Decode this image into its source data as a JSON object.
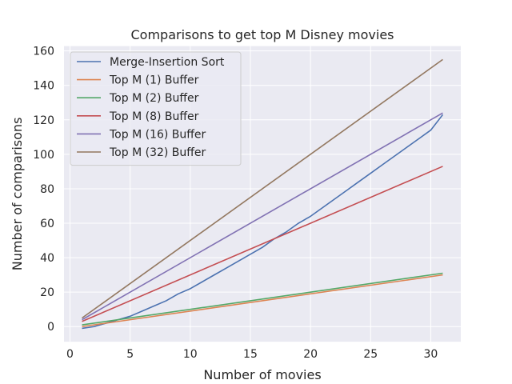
{
  "chart_data": {
    "type": "line",
    "title": "Comparisons to get top M Disney movies",
    "xlabel": "Number of movies",
    "ylabel": "Number of comparisons",
    "xlim": [
      -0.5,
      32.5
    ],
    "ylim": [
      -8.8,
      162.8
    ],
    "xticks": [
      0,
      5,
      10,
      15,
      20,
      25,
      30
    ],
    "yticks": [
      0,
      20,
      40,
      60,
      80,
      100,
      120,
      140,
      160
    ],
    "grid": true,
    "legend_position": "top-left",
    "series": [
      {
        "name": "Merge-Insertion Sort",
        "color": "#4c72b0",
        "x": [
          1,
          2,
          3,
          4,
          5,
          6,
          7,
          8,
          9,
          10,
          11,
          12,
          13,
          14,
          15,
          16,
          17,
          18,
          19,
          20,
          21,
          22,
          23,
          24,
          25,
          26,
          27,
          28,
          29,
          30,
          31
        ],
        "y": [
          -1,
          0,
          2,
          4,
          6,
          9,
          12,
          15,
          19,
          22,
          26,
          30,
          34,
          38,
          42,
          46,
          51,
          55,
          60,
          64,
          69,
          74,
          79,
          84,
          89,
          94,
          99,
          104,
          109,
          114,
          123
        ]
      },
      {
        "name": "Top M (1) Buffer",
        "color": "#dd8452",
        "x": [
          1,
          31
        ],
        "y": [
          0,
          30
        ]
      },
      {
        "name": "Top M (2) Buffer",
        "color": "#55a868",
        "x": [
          1,
          31
        ],
        "y": [
          1,
          31
        ]
      },
      {
        "name": "Top M (8) Buffer",
        "color": "#c44e52",
        "x": [
          1,
          31
        ],
        "y": [
          3,
          93
        ]
      },
      {
        "name": "Top M (16) Buffer",
        "color": "#8172b3",
        "x": [
          1,
          31
        ],
        "y": [
          4,
          124
        ]
      },
      {
        "name": "Top M (32) Buffer",
        "color": "#937860",
        "x": [
          1,
          31
        ],
        "y": [
          5,
          155
        ]
      }
    ]
  }
}
